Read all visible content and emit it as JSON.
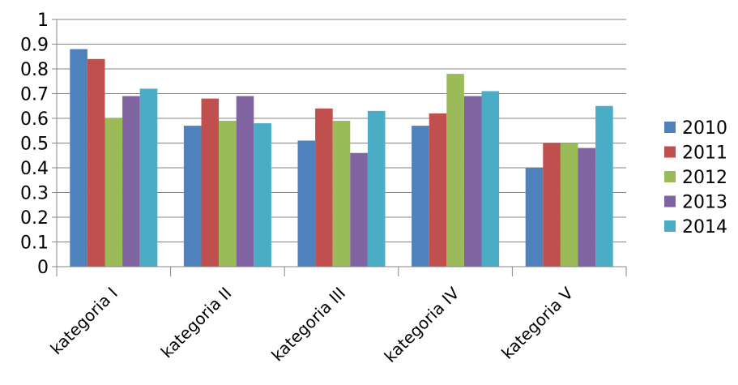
{
  "chart_data": {
    "type": "bar",
    "title": "",
    "xlabel": "",
    "ylabel": "",
    "ylim": [
      0,
      1
    ],
    "ytick_step": 0.1,
    "grid": "horizontal",
    "legend_position": "right",
    "categories": [
      "kategoria I",
      "kategoria II",
      "kategoria III",
      "kategoria IV",
      "kategoria V"
    ],
    "series": [
      {
        "name": "2010",
        "color": "#4f81bd",
        "values": [
          0.88,
          0.57,
          0.51,
          0.57,
          0.4
        ]
      },
      {
        "name": "2011",
        "color": "#c0504d",
        "values": [
          0.84,
          0.68,
          0.64,
          0.62,
          0.5
        ]
      },
      {
        "name": "2012",
        "color": "#9bbb59",
        "values": [
          0.6,
          0.59,
          0.59,
          0.78,
          0.5
        ]
      },
      {
        "name": "2013",
        "color": "#8064a2",
        "values": [
          0.69,
          0.69,
          0.46,
          0.69,
          0.48
        ]
      },
      {
        "name": "2014",
        "color": "#4bacc6",
        "values": [
          0.72,
          0.58,
          0.63,
          0.71,
          0.65
        ]
      }
    ]
  }
}
